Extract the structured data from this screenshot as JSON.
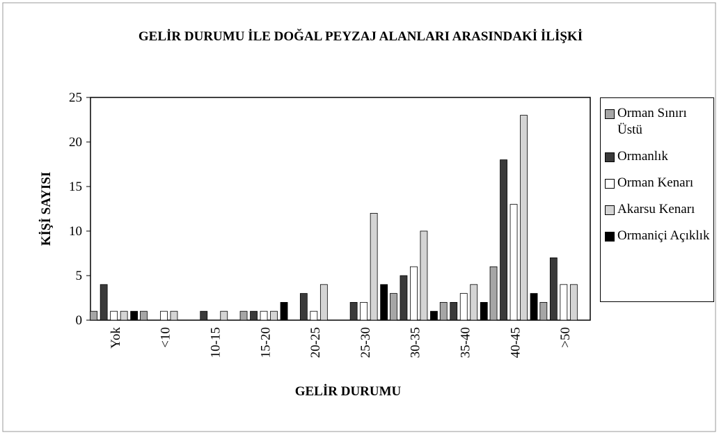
{
  "chart_data": {
    "type": "bar",
    "title": "GELİR DURUMU İLE DOĞAL PEYZAJ ALANLARI ARASINDAKİ İLİŞKİ",
    "x_label": "GELİR DURUMU",
    "y_label": "KİŞİ SAYISI",
    "categories": [
      "Yok",
      "<10",
      "10-15",
      "15-20",
      "20-25",
      "25-30",
      "30-35",
      "35-40",
      "40-45",
      ">50"
    ],
    "series": [
      {
        "name": "Orman Sınırı Üstü",
        "color": "#a6a6a6",
        "values": [
          1,
          1,
          0,
          1,
          0,
          0,
          3,
          2,
          6,
          2
        ]
      },
      {
        "name": "Ormanlık",
        "color": "#3a3a3a",
        "values": [
          4,
          0,
          1,
          1,
          3,
          2,
          5,
          2,
          18,
          7
        ]
      },
      {
        "name": "Orman Kenarı",
        "color": "#ffffff",
        "values": [
          1,
          1,
          0,
          1,
          1,
          2,
          6,
          3,
          13,
          4
        ]
      },
      {
        "name": "Akarsu Kenarı",
        "color": "#d4d4d4",
        "values": [
          1,
          1,
          1,
          1,
          4,
          12,
          10,
          4,
          23,
          4
        ]
      },
      {
        "name": "Ormaniçi Açıklık",
        "color": "#000000",
        "values": [
          1,
          0,
          0,
          2,
          0,
          4,
          1,
          2,
          3,
          0
        ]
      }
    ],
    "ylim": [
      0,
      25
    ],
    "yticks": [
      0,
      5,
      10,
      15,
      20,
      25
    ],
    "legend": "right"
  }
}
